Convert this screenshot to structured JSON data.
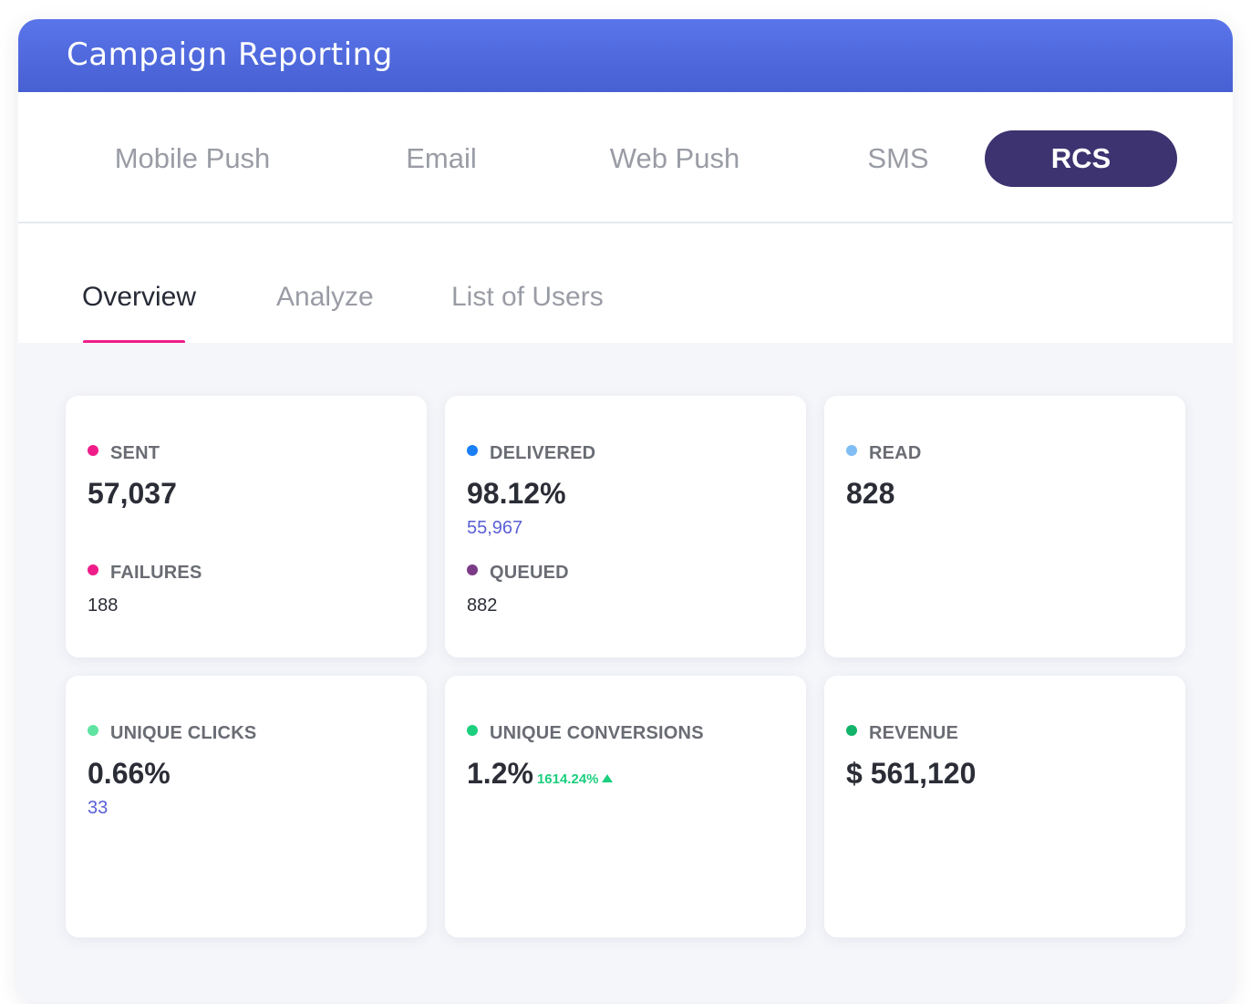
{
  "header": {
    "title": "Campaign Reporting"
  },
  "channels": [
    {
      "label": "Mobile Push"
    },
    {
      "label": "Email"
    },
    {
      "label": "Web Push"
    },
    {
      "label": "SMS"
    },
    {
      "label": "RCS",
      "active": true
    }
  ],
  "subtabs": [
    {
      "label": "Overview",
      "active": true
    },
    {
      "label": "Analyze"
    },
    {
      "label": "List of Users"
    }
  ],
  "colors": {
    "accent": "#3c3370",
    "header": "#5468df",
    "underline": "#ef1d8a",
    "sent": "#ef1d8a",
    "failures": "#ef1d8a",
    "delivered": "#1a7ef5",
    "queued": "#7b3b86",
    "read": "#7fbdf4",
    "clicks": "#5fe3a1",
    "conversions": "#1ccf7e",
    "revenue": "#12b46a",
    "sub_value": "#5a5fd6"
  },
  "metrics": {
    "sent": {
      "label": "SENT",
      "value": "57,037"
    },
    "failures": {
      "label": "FAILURES",
      "value": "188"
    },
    "delivered": {
      "label": "DELIVERED",
      "value": "98.12%",
      "sub": "55,967"
    },
    "queued": {
      "label": "QUEUED",
      "value": "882"
    },
    "read": {
      "label": "READ",
      "value": "828"
    },
    "unique_clicks": {
      "label": "UNIQUE CLICKS",
      "value": "0.66%",
      "sub": "33"
    },
    "unique_conversions": {
      "label": "UNIQUE CONVERSIONS",
      "value": "1.2%",
      "trend": "1614.24%",
      "trend_direction": "up"
    },
    "revenue": {
      "label": "REVENUE",
      "value": "$ 561,120"
    }
  }
}
